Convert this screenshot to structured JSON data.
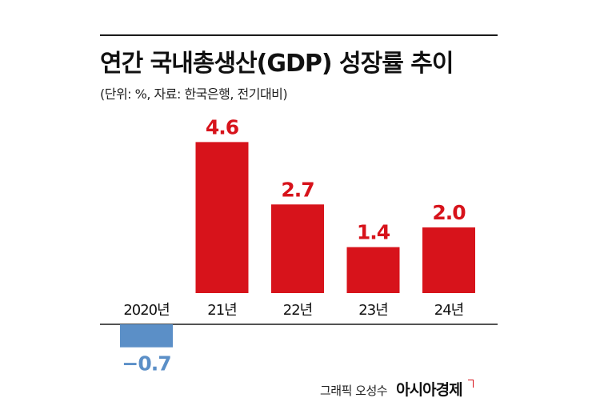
{
  "title": "연간 국내총생산(GDP) 성장률 추이",
  "subtitle": "(단위: %, 자료: 한국은행, 전기대비)",
  "credit": {
    "byline": "그래픽 오성수",
    "brand": "아시아경제"
  },
  "colors": {
    "positive": "#d7131b",
    "negative": "#5b8fc7",
    "axis": "#1a1a1a"
  },
  "chart_data": {
    "type": "bar",
    "categories": [
      "2020년",
      "21년",
      "22년",
      "23년",
      "24년"
    ],
    "values": [
      -0.7,
      4.6,
      2.7,
      1.4,
      2.0
    ],
    "value_labels": [
      "−0.7",
      "4.6",
      "2.7",
      "1.4",
      "2.0"
    ],
    "title": "연간 국내총생산(GDP) 성장률 추이",
    "unit": "%",
    "ylim": [
      -0.7,
      4.6
    ],
    "grid": false,
    "legend": "none"
  }
}
